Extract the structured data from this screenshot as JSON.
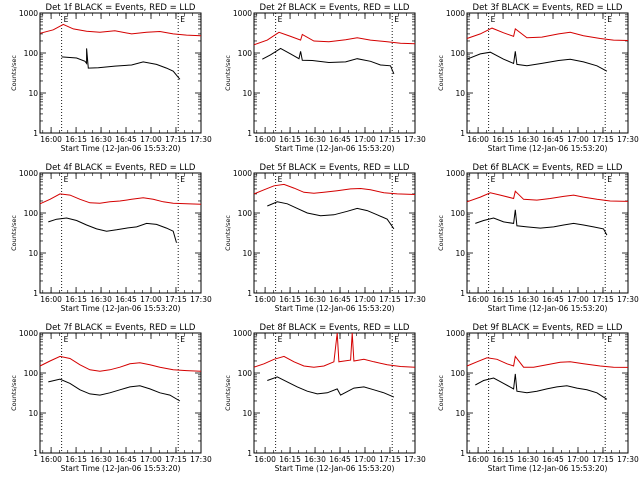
{
  "figure": {
    "ytitle": "Counts/sec",
    "xtitle": "Start Time (12-Jan-06 15:53:20)",
    "xticks": [
      "16:00",
      "16:15",
      "16:30",
      "16:45",
      "17:00",
      "17:15",
      "17:30"
    ],
    "yticks": [
      "1",
      "10",
      "100",
      "1000"
    ],
    "event_marker": "E",
    "colors": {
      "events": "#000000",
      "lld": "#d40000",
      "axes": "#000000",
      "marker_line": "#000000"
    }
  },
  "chart_data": [
    {
      "type": "line",
      "title": "Det 1f BLACK = Events, RED = LLD",
      "log_y": true,
      "xlim_min": [
        0,
        96.7
      ],
      "ylim": [
        1,
        1000
      ],
      "marker_lines_min": [
        13,
        83
      ],
      "series": [
        {
          "kind": "events",
          "x": [
            13,
            22,
            27,
            28,
            28,
            29,
            35,
            45,
            55,
            62,
            70,
            76,
            80,
            84
          ],
          "y": [
            80,
            75,
            62,
            55,
            130,
            42,
            43,
            47,
            50,
            60,
            52,
            42,
            35,
            22
          ]
        },
        {
          "kind": "lld",
          "x": [
            0,
            8,
            14,
            20,
            28,
            36,
            45,
            55,
            64,
            72,
            80,
            88,
            96.7
          ],
          "y": [
            310,
            380,
            520,
            400,
            350,
            330,
            360,
            300,
            330,
            345,
            300,
            280,
            270
          ]
        }
      ]
    },
    {
      "type": "line",
      "title": "Det 2f BLACK = Events, RED = LLD",
      "log_y": true,
      "xlim_min": [
        0,
        96.7
      ],
      "ylim": [
        1,
        1000
      ],
      "marker_lines_min": [
        13,
        83
      ],
      "series": [
        {
          "kind": "events",
          "x": [
            5,
            10,
            16,
            22,
            27,
            28,
            29,
            35,
            45,
            55,
            62,
            70,
            76,
            82,
            84
          ],
          "y": [
            70,
            90,
            130,
            95,
            72,
            110,
            66,
            65,
            58,
            60,
            72,
            62,
            50,
            48,
            30
          ]
        },
        {
          "kind": "lld",
          "x": [
            0,
            8,
            15,
            22,
            28,
            29,
            36,
            45,
            55,
            62,
            70,
            80,
            88,
            96.7
          ],
          "y": [
            160,
            210,
            330,
            260,
            210,
            290,
            200,
            190,
            215,
            240,
            210,
            190,
            175,
            170
          ]
        }
      ]
    },
    {
      "type": "line",
      "title": "Det 3f BLACK = Events, RED = LLD",
      "log_y": true,
      "xlim_min": [
        0,
        96.7
      ],
      "ylim": [
        1,
        1000
      ],
      "marker_lines_min": [
        13,
        83
      ],
      "series": [
        {
          "kind": "events",
          "x": [
            0,
            8,
            14,
            22,
            28,
            29,
            30,
            36,
            45,
            55,
            62,
            70,
            78,
            84
          ],
          "y": [
            70,
            95,
            105,
            70,
            55,
            110,
            52,
            48,
            55,
            65,
            70,
            60,
            48,
            35
          ]
        },
        {
          "kind": "lld",
          "x": [
            0,
            8,
            15,
            22,
            28,
            29,
            36,
            45,
            55,
            62,
            70,
            80,
            88,
            96.7
          ],
          "y": [
            230,
            300,
            420,
            320,
            260,
            400,
            240,
            250,
            300,
            330,
            270,
            230,
            210,
            205
          ]
        }
      ]
    },
    {
      "type": "line",
      "title": "Det 4f BLACK = Events, RED = LLD",
      "log_y": true,
      "xlim_min": [
        0,
        96.7
      ],
      "ylim": [
        1,
        1000
      ],
      "marker_lines_min": [
        13,
        83
      ],
      "series": [
        {
          "kind": "events",
          "x": [
            5,
            10,
            16,
            22,
            28,
            34,
            40,
            46,
            52,
            58,
            64,
            70,
            76,
            80,
            82
          ],
          "y": [
            60,
            70,
            75,
            65,
            50,
            40,
            35,
            38,
            42,
            45,
            55,
            52,
            42,
            35,
            18
          ]
        },
        {
          "kind": "lld",
          "x": [
            0,
            6,
            12,
            18,
            24,
            30,
            36,
            42,
            48,
            55,
            62,
            68,
            74,
            80,
            88,
            96.7
          ],
          "y": [
            170,
            220,
            300,
            280,
            220,
            180,
            175,
            190,
            200,
            220,
            240,
            220,
            190,
            175,
            170,
            165
          ]
        }
      ]
    },
    {
      "type": "line",
      "title": "Det 5f BLACK = Events, RED = LLD",
      "log_y": true,
      "xlim_min": [
        0,
        96.7
      ],
      "ylim": [
        1,
        1000
      ],
      "marker_lines_min": [
        13,
        83
      ],
      "series": [
        {
          "kind": "events",
          "x": [
            8,
            14,
            20,
            26,
            32,
            40,
            48,
            56,
            62,
            68,
            74,
            80,
            84
          ],
          "y": [
            150,
            190,
            170,
            130,
            100,
            85,
            90,
            110,
            130,
            115,
            90,
            70,
            40
          ]
        },
        {
          "kind": "lld",
          "x": [
            0,
            6,
            12,
            18,
            24,
            30,
            36,
            42,
            50,
            58,
            64,
            70,
            78,
            86,
            96.7
          ],
          "y": [
            300,
            380,
            480,
            520,
            420,
            330,
            310,
            330,
            360,
            400,
            410,
            380,
            320,
            300,
            290
          ]
        }
      ]
    },
    {
      "type": "line",
      "title": "Det 6f BLACK = Events, RED = LLD",
      "log_y": true,
      "xlim_min": [
        0,
        96.7
      ],
      "ylim": [
        1,
        1000
      ],
      "marker_lines_min": [
        13,
        83
      ],
      "series": [
        {
          "kind": "events",
          "x": [
            5,
            10,
            16,
            22,
            28,
            29,
            30,
            36,
            44,
            52,
            58,
            64,
            70,
            76,
            82,
            84
          ],
          "y": [
            55,
            65,
            75,
            60,
            55,
            120,
            48,
            45,
            42,
            45,
            50,
            55,
            50,
            45,
            40,
            28
          ]
        },
        {
          "kind": "lld",
          "x": [
            0,
            8,
            14,
            20,
            28,
            29,
            34,
            42,
            50,
            58,
            64,
            70,
            78,
            86,
            96.7
          ],
          "y": [
            190,
            250,
            320,
            280,
            230,
            350,
            220,
            210,
            230,
            260,
            280,
            250,
            220,
            200,
            195
          ]
        }
      ]
    },
    {
      "type": "line",
      "title": "Det 7f BLACK = Events, RED = LLD",
      "log_y": true,
      "xlim_min": [
        0,
        96.7
      ],
      "ylim": [
        1,
        1000
      ],
      "marker_lines_min": [
        13,
        83
      ],
      "series": [
        {
          "kind": "events",
          "x": [
            5,
            12,
            18,
            24,
            30,
            36,
            42,
            48,
            54,
            60,
            66,
            72,
            78,
            84
          ],
          "y": [
            60,
            70,
            55,
            38,
            30,
            28,
            32,
            38,
            45,
            48,
            40,
            32,
            28,
            20
          ]
        },
        {
          "kind": "lld",
          "x": [
            0,
            6,
            12,
            18,
            24,
            30,
            36,
            42,
            48,
            54,
            60,
            66,
            72,
            80,
            88,
            96.7
          ],
          "y": [
            150,
            200,
            260,
            230,
            160,
            120,
            110,
            120,
            140,
            170,
            180,
            160,
            140,
            120,
            115,
            110
          ]
        }
      ]
    },
    {
      "type": "line",
      "title": "Det 8f BLACK = Events, RED = LLD",
      "log_y": true,
      "xlim_min": [
        0,
        96.7
      ],
      "ylim": [
        1,
        1000
      ],
      "marker_lines_min": [
        13,
        83
      ],
      "series": [
        {
          "kind": "events",
          "x": [
            8,
            14,
            20,
            26,
            32,
            38,
            44,
            50,
            52,
            60,
            66,
            72,
            78,
            84
          ],
          "y": [
            65,
            80,
            60,
            45,
            35,
            30,
            32,
            40,
            28,
            42,
            45,
            38,
            32,
            25
          ]
        },
        {
          "kind": "lld",
          "x": [
            0,
            6,
            12,
            18,
            24,
            30,
            36,
            42,
            48,
            50,
            51,
            58,
            59,
            60,
            66,
            72,
            80,
            88,
            96.7
          ],
          "y": [
            140,
            170,
            220,
            260,
            190,
            150,
            140,
            150,
            190,
            1000,
            190,
            210,
            1000,
            200,
            220,
            190,
            160,
            145,
            140
          ]
        }
      ]
    },
    {
      "type": "line",
      "title": "Det 9f BLACK = Events, RED = LLD",
      "log_y": true,
      "xlim_min": [
        0,
        96.7
      ],
      "ylim": [
        1,
        1000
      ],
      "marker_lines_min": [
        13,
        83
      ],
      "series": [
        {
          "kind": "events",
          "x": [
            5,
            10,
            16,
            22,
            28,
            29,
            30,
            36,
            42,
            48,
            54,
            60,
            66,
            72,
            78,
            84
          ],
          "y": [
            50,
            65,
            75,
            55,
            40,
            95,
            35,
            32,
            35,
            40,
            45,
            48,
            42,
            38,
            32,
            22
          ]
        },
        {
          "kind": "lld",
          "x": [
            0,
            6,
            12,
            18,
            24,
            28,
            29,
            34,
            40,
            48,
            56,
            62,
            70,
            80,
            88,
            96.7
          ],
          "y": [
            150,
            190,
            240,
            220,
            170,
            150,
            260,
            140,
            140,
            160,
            185,
            190,
            170,
            150,
            140,
            138
          ]
        }
      ]
    }
  ]
}
